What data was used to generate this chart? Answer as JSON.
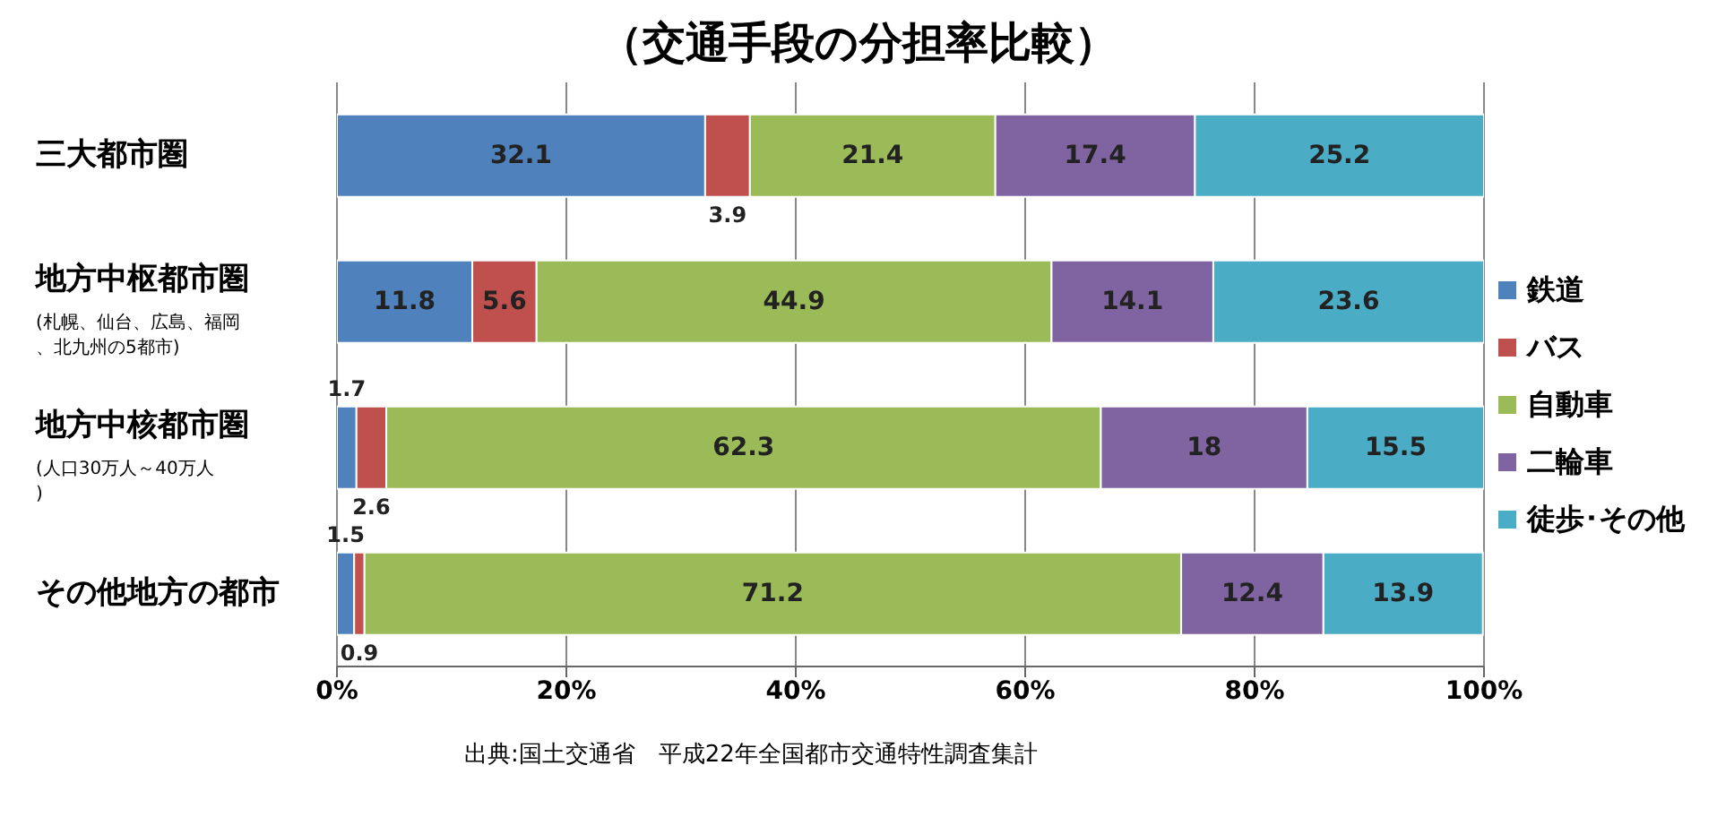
{
  "chart_data": {
    "type": "bar",
    "orientation": "horizontal",
    "stacked": true,
    "title": "（交通手段の分担率比較）",
    "categories": [
      "三大都市圏",
      "地方中枢都市圏(札幌、仙台、広島、福岡、北九州の5都市)",
      "地方中核都市圏(人口30万人～40万人)",
      "その他地方の都市"
    ],
    "series": [
      {
        "name": "鉄道",
        "color": "#4f81bd",
        "values": [
          32.1,
          11.8,
          1.7,
          1.5
        ]
      },
      {
        "name": "バス",
        "color": "#c0504d",
        "values": [
          3.9,
          5.6,
          2.6,
          0.9
        ]
      },
      {
        "name": "自動車",
        "color": "#9bbb59",
        "values": [
          21.4,
          44.9,
          62.3,
          71.2
        ]
      },
      {
        "name": "二輪車",
        "color": "#8064a2",
        "values": [
          17.4,
          14.1,
          18,
          12.4
        ]
      },
      {
        "name": "徒歩･その他",
        "color": "#4bacc6",
        "values": [
          25.2,
          23.6,
          15.5,
          13.9
        ]
      }
    ],
    "xlim": [
      0,
      100
    ],
    "xticks": [
      {
        "value": 0,
        "label": "0%"
      },
      {
        "value": 20,
        "label": "20%"
      },
      {
        "value": 40,
        "label": "40%"
      },
      {
        "value": 60,
        "label": "60%"
      },
      {
        "value": 80,
        "label": "80%"
      },
      {
        "value": 100,
        "label": "100%"
      }
    ],
    "grid": "x",
    "legend": "right",
    "data_labels": true,
    "annotations": [
      "出典:国土交通省　平成22年全国都市交通特性調査集計"
    ]
  }
}
